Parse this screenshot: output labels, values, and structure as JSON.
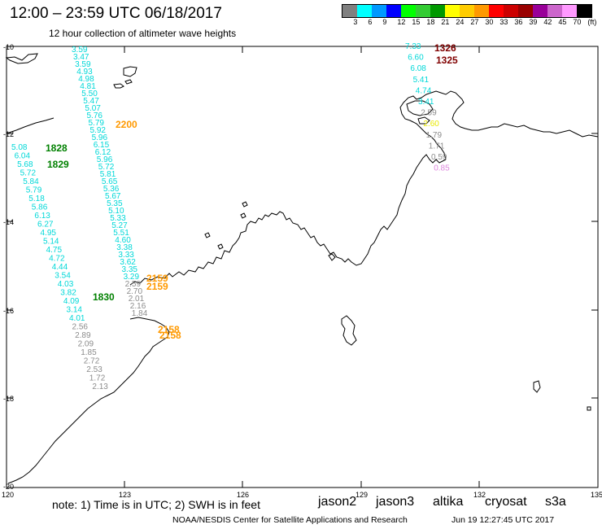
{
  "header": {
    "title": "12:00  –  23:59 UTC 06/18/2017",
    "subtitle": "12 hour collection of altimeter wave heights"
  },
  "color_scale": {
    "colors": [
      "#808080",
      "#00ffff",
      "#0099ff",
      "#0000ff",
      "#00ff00",
      "#33cc33",
      "#009900",
      "#ffff00",
      "#ffcc00",
      "#ff9900",
      "#ff0000",
      "#cc0000",
      "#990000",
      "#990099",
      "#cc66cc",
      "#ff99ff",
      "#000000"
    ],
    "labels": [
      "3",
      "6",
      "9",
      "12",
      "15",
      "18",
      "21",
      "24",
      "27",
      "30",
      "33",
      "36",
      "39",
      "42",
      "45",
      "70",
      "(ft)"
    ]
  },
  "map": {
    "lat_labels": [
      "-10",
      "-12",
      "-14",
      "-16",
      "-18",
      "-20"
    ],
    "lon_labels": [
      "120",
      "123",
      "126",
      "129",
      "132",
      "135"
    ]
  },
  "track_colors": {
    "cyan": "#00d8d8",
    "gray": "#8c8c8c",
    "orange": "#ff9900",
    "green": "#008000",
    "darkred": "#800000",
    "yellow": "#e8e800",
    "pink": "#dd88dd"
  },
  "tracks": {
    "track_a_values": [
      "3.59",
      "3.47",
      "3.59",
      "4.93",
      "4.98",
      "4.81",
      "5.50",
      "5.47",
      "5.07",
      "5.76",
      "5.79",
      "5.92",
      "5.96",
      "6.15",
      "6.12",
      "5.96",
      "5.72",
      "5.81",
      "5.65",
      "5.36",
      "5.67",
      "5.35",
      "5.10",
      "5.33",
      "5.27",
      "5.51",
      "4.60",
      "3.38",
      "3.33",
      "3.62",
      "3.35",
      "3.29",
      "2.59",
      "2.70",
      "2.01",
      "2.16",
      "1.84"
    ],
    "track_b_values": [
      "5.08",
      "6.04",
      "5.68",
      "5.72",
      "5.84",
      "5.79",
      "5.18",
      "5.86",
      "6.13",
      "6.27",
      "4.95",
      "5.14",
      "4.75",
      "4.72",
      "4.44",
      "3.54",
      "4.03",
      "3.82",
      "4.09",
      "3.14",
      "4.01",
      "2.56",
      "2.89",
      "2.09",
      "1.85",
      "2.72",
      "2.53",
      "1.72",
      "2.13"
    ],
    "track_c_values": [
      "7.33",
      "6.60",
      "6.08",
      "5.41",
      "4.74",
      "3.41",
      "2.59",
      "2.60",
      "1.79",
      "1.71",
      "0.59",
      "0.85"
    ]
  },
  "time_labels": {
    "t2200": "2200",
    "t1828": "1828",
    "t1829": "1829",
    "t1830": "1830",
    "t2159a": "2159",
    "t2159b": "2159",
    "t2158a": "2158",
    "t2158b": "2158",
    "t1326": "1326",
    "t1325": "1325"
  },
  "footer": {
    "note": "note:  1) Time is in UTC;  2) SWH is in feet",
    "credit": "NOAA/NESDIS Center for Satellite Applications and Research",
    "timestamp": "Jun 19 12:27:45 UTC 2017"
  },
  "missions": [
    {
      "label": "jason2",
      "color": "#0000cc"
    },
    {
      "label": "jason3",
      "color": "#008800"
    },
    {
      "label": "altika",
      "color": "#ff9900"
    },
    {
      "label": "cryosat",
      "color": "#dd0000"
    },
    {
      "label": "s3a",
      "color": "#880000"
    }
  ]
}
